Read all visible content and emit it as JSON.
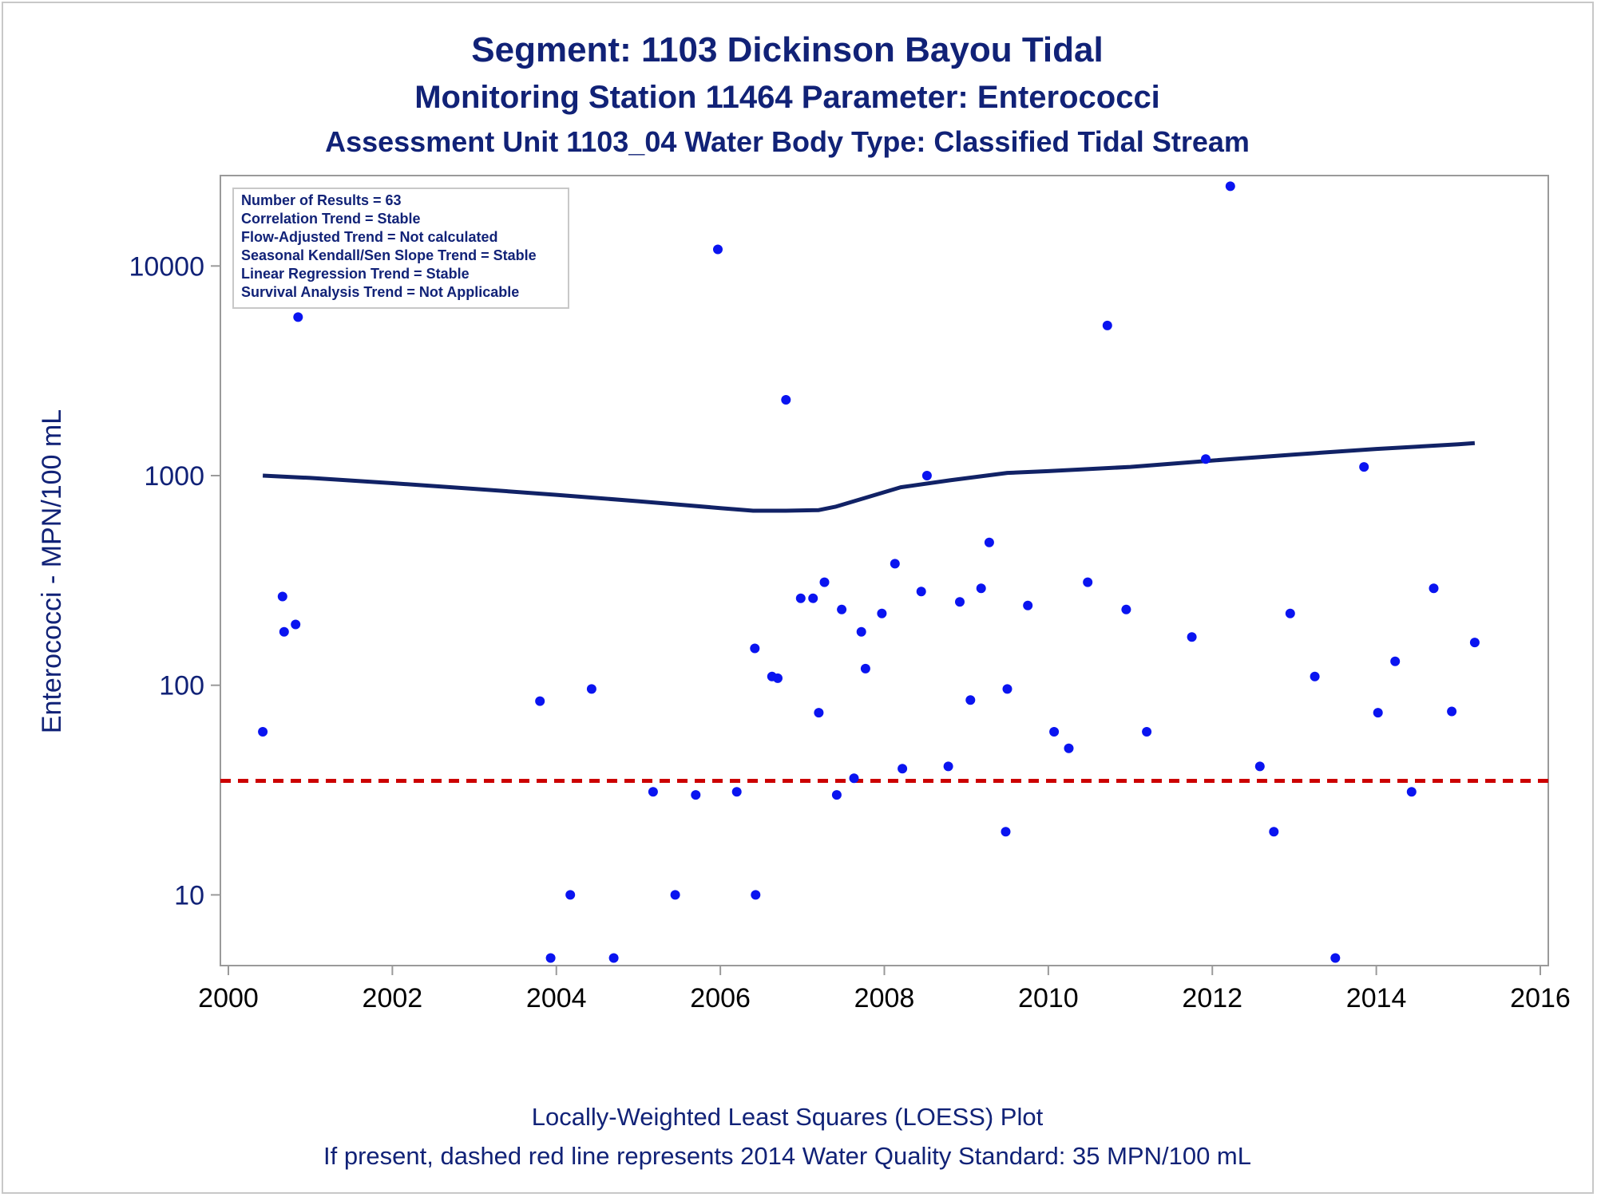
{
  "titles": {
    "line1": "Segment: 1103  Dickinson Bayou Tidal",
    "line2": "Monitoring Station 11464 Parameter: Enterococci",
    "line3": "Assessment Unit 1103_04   Water Body Type: Classified Tidal Stream"
  },
  "footnotes": {
    "line1": "Locally-Weighted Least Squares (LOESS) Plot",
    "line2": "If present, dashed red line represents 2014 Water Quality Standard: 35 MPN/100 mL"
  },
  "stats_box": [
    "Number of Results = 63",
    "Correlation Trend = Stable",
    "Flow-Adjusted Trend = Not calculated",
    "Seasonal Kendall/Sen Slope Trend = Stable",
    "Linear Regression Trend = Stable",
    "Survival Analysis Trend = Not Applicable"
  ],
  "colors": {
    "points": "#0a14f0",
    "loess": "#112266",
    "standard": "#cc0000",
    "text": "#112277"
  },
  "chart_data": {
    "type": "scatter",
    "ylabel": "Enterococci - MPN/100 mL",
    "xlabel": "",
    "xlim": [
      2000,
      2016
    ],
    "ylim": [
      4.6,
      27000
    ],
    "yscale": "log",
    "xticks": [
      2000,
      2002,
      2004,
      2006,
      2008,
      2010,
      2012,
      2014,
      2016
    ],
    "yticks": [
      10,
      100,
      1000,
      10000
    ],
    "standard_value": 35,
    "points": [
      [
        2000.42,
        60
      ],
      [
        2000.66,
        265
      ],
      [
        2000.68,
        180
      ],
      [
        2000.82,
        195
      ],
      [
        2000.85,
        5700
      ],
      [
        2003.8,
        84
      ],
      [
        2003.93,
        5
      ],
      [
        2004.17,
        10
      ],
      [
        2004.43,
        96
      ],
      [
        2004.7,
        5
      ],
      [
        2005.18,
        31
      ],
      [
        2005.45,
        10
      ],
      [
        2005.7,
        30
      ],
      [
        2005.97,
        12000
      ],
      [
        2006.2,
        31
      ],
      [
        2006.42,
        150
      ],
      [
        2006.43,
        10
      ],
      [
        2006.63,
        110
      ],
      [
        2006.7,
        108
      ],
      [
        2006.8,
        2300
      ],
      [
        2006.98,
        260
      ],
      [
        2007.13,
        260
      ],
      [
        2007.2,
        74
      ],
      [
        2007.27,
        310
      ],
      [
        2007.42,
        30
      ],
      [
        2007.48,
        230
      ],
      [
        2007.63,
        36
      ],
      [
        2007.72,
        180
      ],
      [
        2007.77,
        120
      ],
      [
        2007.97,
        220
      ],
      [
        2008.13,
        380
      ],
      [
        2008.22,
        40
      ],
      [
        2008.45,
        280
      ],
      [
        2008.52,
        1000
      ],
      [
        2008.78,
        41
      ],
      [
        2008.92,
        250
      ],
      [
        2009.05,
        85
      ],
      [
        2009.18,
        290
      ],
      [
        2009.28,
        480
      ],
      [
        2009.48,
        20
      ],
      [
        2009.5,
        96
      ],
      [
        2009.75,
        240
      ],
      [
        2010.07,
        60
      ],
      [
        2010.25,
        50
      ],
      [
        2010.48,
        310
      ],
      [
        2010.72,
        5200
      ],
      [
        2010.95,
        230
      ],
      [
        2011.2,
        60
      ],
      [
        2011.75,
        170
      ],
      [
        2011.92,
        1200
      ],
      [
        2012.22,
        24000
      ],
      [
        2012.58,
        41
      ],
      [
        2012.75,
        20
      ],
      [
        2012.95,
        220
      ],
      [
        2013.25,
        110
      ],
      [
        2013.5,
        5
      ],
      [
        2013.85,
        1100
      ],
      [
        2014.02,
        74
      ],
      [
        2014.23,
        130
      ],
      [
        2014.43,
        31
      ],
      [
        2014.7,
        290
      ],
      [
        2014.92,
        75
      ],
      [
        2015.2,
        160
      ]
    ],
    "loess": [
      [
        2000.42,
        1000
      ],
      [
        2001.0,
        975
      ],
      [
        2002.0,
        920
      ],
      [
        2003.0,
        865
      ],
      [
        2004.0,
        810
      ],
      [
        2005.0,
        755
      ],
      [
        2006.0,
        700
      ],
      [
        2006.4,
        680
      ],
      [
        2006.8,
        680
      ],
      [
        2007.2,
        685
      ],
      [
        2007.4,
        710
      ],
      [
        2007.8,
        790
      ],
      [
        2008.2,
        880
      ],
      [
        2008.8,
        950
      ],
      [
        2009.5,
        1030
      ],
      [
        2010.0,
        1050
      ],
      [
        2011.0,
        1100
      ],
      [
        2012.0,
        1180
      ],
      [
        2013.0,
        1260
      ],
      [
        2014.0,
        1340
      ],
      [
        2015.0,
        1410
      ],
      [
        2015.2,
        1430
      ]
    ]
  }
}
